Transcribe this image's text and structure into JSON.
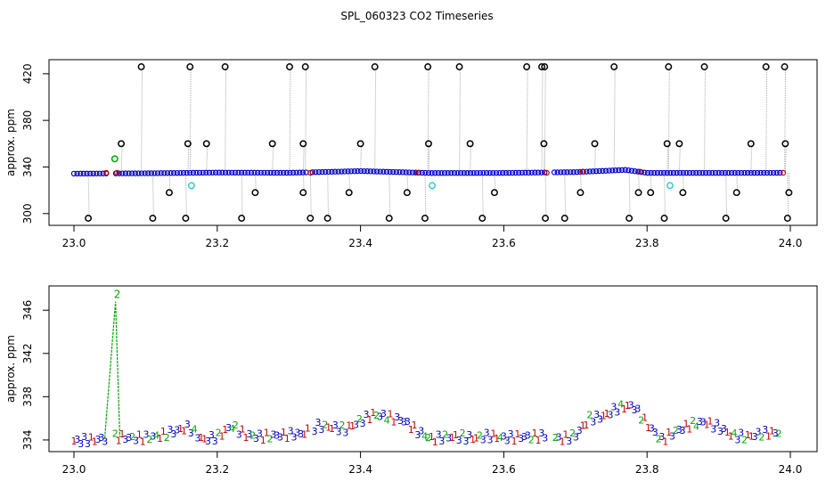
{
  "chart_data": [
    {
      "type": "scatter",
      "title": "SPL_060323  CO2 Timeseries",
      "xlabel": "",
      "ylabel": "approx. ppm",
      "xlim": [
        23.0,
        24.0
      ],
      "ylim": [
        296,
        426
      ],
      "xticks": [
        23.0,
        23.2,
        23.4,
        23.6,
        23.8,
        24.0
      ],
      "xtick_labels": [
        "23.0",
        "23.2",
        "23.4",
        "23.6",
        "23.8",
        "24.0"
      ],
      "yticks": [
        300,
        340,
        380,
        420
      ],
      "ytick_labels": [
        "300",
        "340",
        "380",
        "420"
      ],
      "grid": false,
      "colors": {
        "base": "#0000cc",
        "outlier": "#000000",
        "flag_green": "#00aa00",
        "flag_cyan": "#33cccc",
        "flag_red": "#cc0000",
        "connector": "#aaaaaa"
      },
      "series": [
        {
          "values_note_omitted": false,
          "points": {
            "baseline": [
              [
                23.0,
                334.3
              ],
              [
                23.1,
                334.6
              ],
              [
                23.2,
                335.2
              ],
              [
                23.3,
                335.0
              ],
              [
                23.4,
                336.5
              ],
              [
                23.5,
                334.8
              ],
              [
                23.6,
                334.9
              ],
              [
                23.7,
                335.6
              ],
              [
                23.77,
                337.5
              ],
              [
                23.8,
                334.9
              ],
              [
                23.9,
                334.9
              ],
              [
                23.99,
                335.0
              ]
            ],
            "high_outliers": [
              [
                23.094,
                426
              ],
              [
                23.162,
                426
              ],
              [
                23.211,
                426
              ],
              [
                23.301,
                426
              ],
              [
                23.323,
                426
              ],
              [
                23.42,
                426
              ],
              [
                23.494,
                426
              ],
              [
                23.538,
                426
              ],
              [
                23.632,
                426
              ],
              [
                23.653,
                426
              ],
              [
                23.657,
                426
              ],
              [
                23.754,
                426
              ],
              [
                23.83,
                426
              ],
              [
                23.88,
                426
              ],
              [
                23.966,
                426
              ],
              [
                23.992,
                426
              ]
            ],
            "mid_outliers": [
              [
                23.066,
                360
              ],
              [
                23.159,
                360
              ],
              [
                23.185,
                360
              ],
              [
                23.277,
                360
              ],
              [
                23.32,
                360
              ],
              [
                23.4,
                360
              ],
              [
                23.495,
                360
              ],
              [
                23.553,
                360
              ],
              [
                23.656,
                360
              ],
              [
                23.727,
                360
              ],
              [
                23.828,
                360
              ],
              [
                23.845,
                360
              ],
              [
                23.945,
                360
              ],
              [
                23.993,
                360
              ]
            ],
            "low_outliers": [
              [
                23.02,
                296
              ],
              [
                23.11,
                296
              ],
              [
                23.156,
                296
              ],
              [
                23.234,
                296
              ],
              [
                23.33,
                296
              ],
              [
                23.354,
                296
              ],
              [
                23.44,
                296
              ],
              [
                23.49,
                296
              ],
              [
                23.57,
                296
              ],
              [
                23.658,
                296
              ],
              [
                23.685,
                296
              ],
              [
                23.775,
                296
              ],
              [
                23.824,
                296
              ],
              [
                23.91,
                296
              ],
              [
                23.996,
                296
              ]
            ],
            "low_mid_outliers": [
              [
                23.133,
                318
              ],
              [
                23.253,
                318
              ],
              [
                23.32,
                318
              ],
              [
                23.384,
                318
              ],
              [
                23.465,
                318
              ],
              [
                23.587,
                318
              ],
              [
                23.707,
                318
              ],
              [
                23.788,
                318
              ],
              [
                23.805,
                318
              ],
              [
                23.85,
                318
              ],
              [
                23.925,
                318
              ],
              [
                23.998,
                318
              ]
            ],
            "flag_green": [
              [
                23.057,
                347
              ]
            ],
            "flag_cyan": [
              [
                23.164,
                324
              ],
              [
                23.5,
                324
              ],
              [
                23.832,
                324
              ]
            ]
          }
        }
      ]
    },
    {
      "type": "line",
      "title": "",
      "xlabel": "",
      "ylabel": "approx. ppm",
      "xlim": [
        23.0,
        24.0
      ],
      "ylim": [
        333.5,
        347.5
      ],
      "xticks": [
        23.0,
        23.2,
        23.4,
        23.6,
        23.8,
        24.0
      ],
      "xtick_labels": [
        "23.0",
        "23.2",
        "23.4",
        "23.6",
        "23.8",
        "24.0"
      ],
      "yticks": [
        334,
        338,
        342,
        346
      ],
      "ytick_labels": [
        "334",
        "338",
        "342",
        "346"
      ],
      "grid": false,
      "point_symbols": [
        "1",
        "2",
        "3",
        "4"
      ],
      "symbol_colors": {
        "1": "#cc0000",
        "2": "#00aa00",
        "3": "#0000cc",
        "4": "#00aa00"
      },
      "spike": {
        "x": 23.058,
        "y": 346.8,
        "label": "2"
      },
      "series": [
        {
          "name": "",
          "x": [
            23.0,
            23.02,
            23.04,
            23.06,
            23.08,
            23.1,
            23.12,
            23.14,
            23.16,
            23.18,
            23.2,
            23.22,
            23.24,
            23.26,
            23.28,
            23.3,
            23.32,
            23.34,
            23.36,
            23.38,
            23.4,
            23.42,
            23.44,
            23.46,
            23.48,
            23.5,
            23.52,
            23.54,
            23.56,
            23.58,
            23.6,
            23.62,
            23.64,
            23.66,
            23.68,
            23.7,
            23.72,
            23.74,
            23.76,
            23.78,
            23.8,
            23.82,
            23.84,
            23.86,
            23.88,
            23.9,
            23.92,
            23.94,
            23.96,
            23.98,
            24.0
          ],
          "values": [
            333.9,
            334.0,
            334.1,
            334.3,
            334.2,
            334.2,
            334.4,
            334.8,
            335.2,
            334.0,
            334.3,
            335.3,
            334.5,
            334.3,
            334.4,
            334.5,
            334.6,
            335.3,
            335.2,
            335.0,
            335.8,
            336.4,
            336.1,
            335.8,
            334.8,
            334.1,
            334.3,
            334.3,
            334.2,
            334.4,
            334.2,
            334.3,
            334.3,
            334.4,
            334.1,
            334.4,
            336.0,
            336.2,
            337.0,
            337.2,
            335.5,
            334.0,
            334.8,
            335.4,
            335.7,
            335.2,
            334.4,
            334.3,
            334.6,
            334.7,
            334.8
          ]
        }
      ]
    }
  ]
}
